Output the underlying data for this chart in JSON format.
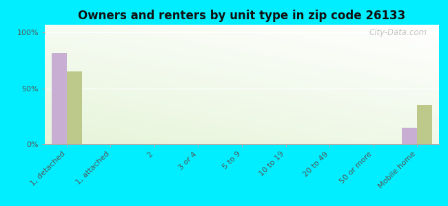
{
  "title": "Owners and renters by unit type in zip code 26133",
  "categories": [
    "1, detached",
    "1, attached",
    "2",
    "3 or 4",
    "5 to 9",
    "10 to 19",
    "20 to 49",
    "50 or more",
    "Mobile home"
  ],
  "owner_values": [
    82,
    0,
    0,
    0,
    0,
    0,
    0,
    0,
    15
  ],
  "renter_values": [
    65,
    0,
    0,
    0,
    0,
    0,
    0,
    0,
    35
  ],
  "owner_color": "#c9aed4",
  "renter_color": "#bdc98a",
  "background_color": "#00eeff",
  "yticks": [
    0,
    50,
    100
  ],
  "ylim": [
    0,
    107
  ],
  "bar_width": 0.35,
  "watermark": "City-Data.com",
  "title_fontsize": 12,
  "tick_fontsize": 8,
  "legend_fontsize": 9
}
